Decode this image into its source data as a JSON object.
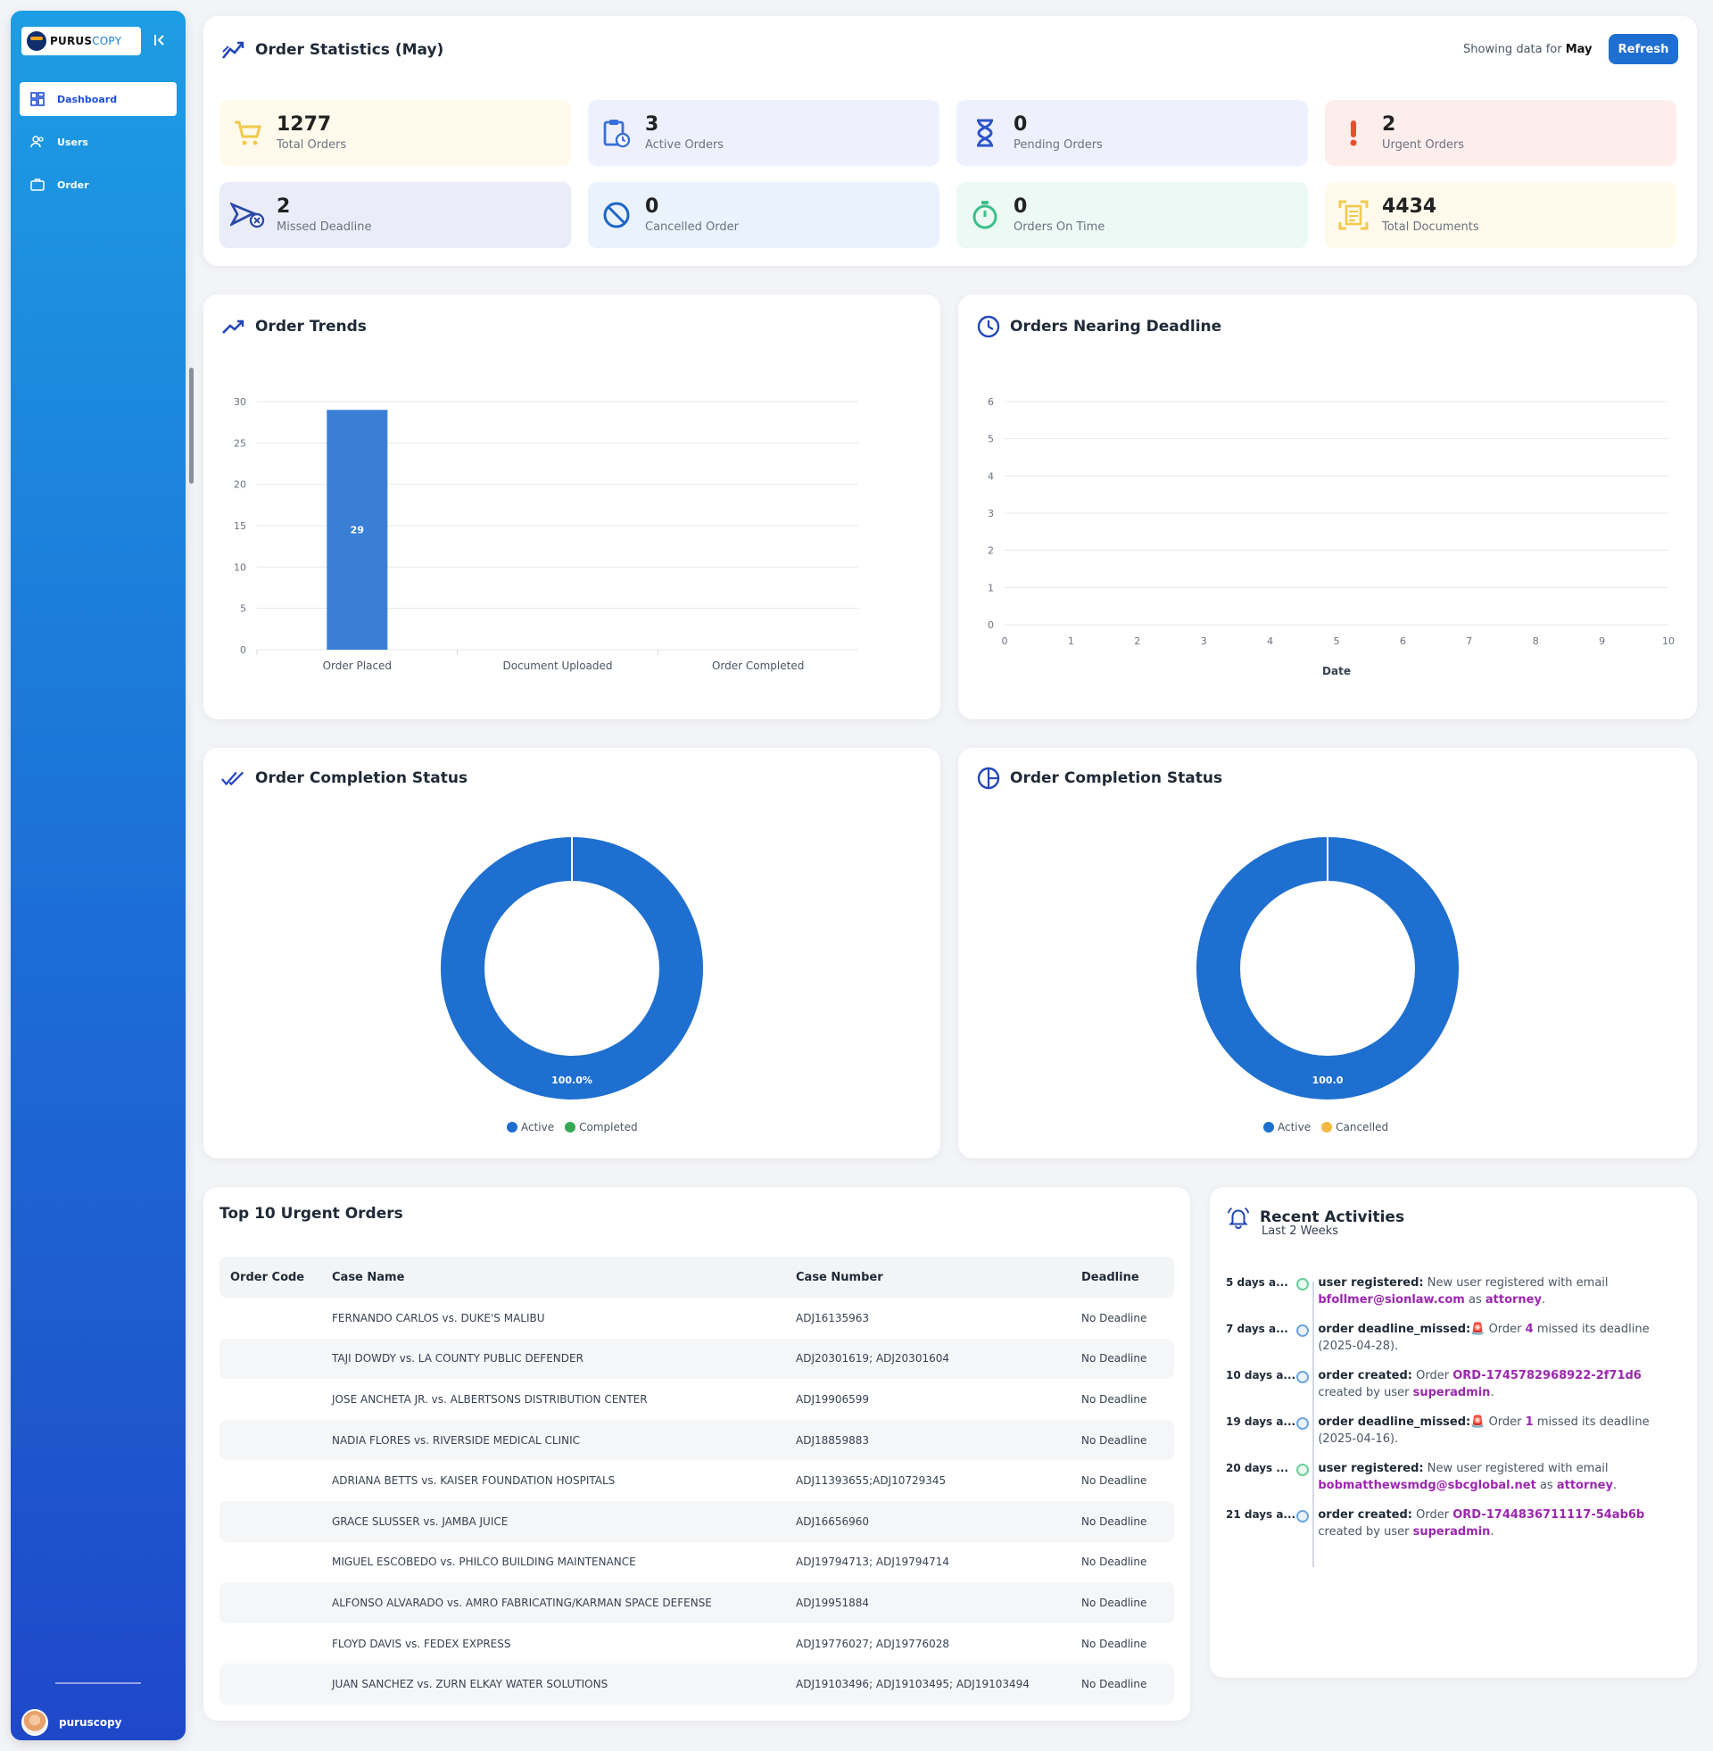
{
  "brand": {
    "name_a": "PURUS",
    "name_b": "COPY"
  },
  "sidebar": {
    "items": [
      {
        "label": "Dashboard",
        "icon": "dashboard-grid-icon",
        "active": true
      },
      {
        "label": "Users",
        "icon": "users-icon",
        "active": false
      },
      {
        "label": "Order",
        "icon": "briefcase-icon",
        "active": false
      }
    ],
    "user": "puruscopy"
  },
  "stats": {
    "title": "Order Statistics (May)",
    "showing_prefix": "Showing data for",
    "showing_month": "May",
    "refresh_label": "Refresh",
    "tiles": [
      {
        "value": "1277",
        "label": "Total Orders",
        "icon": "cart-icon",
        "bg": "#fffaeb",
        "color": "#f2c94c"
      },
      {
        "value": "3",
        "label": "Active Orders",
        "icon": "clipboard-clock-icon",
        "bg": "#eef1fd",
        "color": "#3b6fd8"
      },
      {
        "value": "0",
        "label": "Pending Orders",
        "icon": "hourglass-icon",
        "bg": "#eef1fd",
        "color": "#2c55c7"
      },
      {
        "value": "2",
        "label": "Urgent Orders",
        "icon": "exclamation-icon",
        "bg": "#fdeeec",
        "color": "#e4502f"
      },
      {
        "value": "2",
        "label": "Missed Deadline",
        "icon": "missed-send-icon",
        "bg": "#eaedf8",
        "color": "#2c4aa8"
      },
      {
        "value": "0",
        "label": "Cancelled Order",
        "icon": "cancel-icon",
        "bg": "#eaf3fb",
        "color": "#1f66c7"
      },
      {
        "value": "0",
        "label": "Orders On Time",
        "icon": "stopwatch-icon",
        "bg": "#ecf9f4",
        "color": "#3cbf8c"
      },
      {
        "value": "4434",
        "label": "Total Documents",
        "icon": "document-scan-icon",
        "bg": "#fffaeb",
        "color": "#f2c94c"
      }
    ]
  },
  "trends": {
    "title": "Order Trends",
    "chart_data": {
      "type": "bar",
      "categories": [
        "Order Placed",
        "Document Uploaded",
        "Order Completed"
      ],
      "values": [
        29,
        0,
        0
      ],
      "ylim": [
        0,
        30
      ],
      "yticks": [
        0,
        5,
        10,
        15,
        20,
        25,
        30
      ],
      "bar_color": "#3a7fd5",
      "grid": true
    }
  },
  "deadline": {
    "title": "Orders Nearing Deadline",
    "chart_data": {
      "type": "line",
      "x": [],
      "values": [],
      "xlim": [
        0,
        10
      ],
      "ylim": [
        0,
        6
      ],
      "xticks": [
        0,
        1,
        2,
        3,
        4,
        5,
        6,
        7,
        8,
        9,
        10
      ],
      "yticks": [
        0,
        1,
        2,
        3,
        4,
        5,
        6
      ],
      "xlabel": "Date",
      "grid": true
    }
  },
  "completion_left": {
    "title": "Order Completion Status",
    "chart_data": {
      "type": "pie",
      "labels": [
        "Active",
        "Completed"
      ],
      "values": [
        100.0,
        0.0
      ],
      "colors": [
        "#1e6fcf",
        "#34a853"
      ],
      "slice_label": "100.0%"
    }
  },
  "completion_right": {
    "title": "Order Completion Status",
    "chart_data": {
      "type": "pie",
      "labels": [
        "Active",
        "Cancelled"
      ],
      "values": [
        100.0,
        0.0
      ],
      "colors": [
        "#1e6fcf",
        "#f5b942"
      ],
      "slice_label": "100.0"
    }
  },
  "urgent": {
    "title": "Top 10 Urgent Orders",
    "columns": [
      "Order Code",
      "Case Name",
      "Case Number",
      "Deadline"
    ],
    "rows": [
      [
        "",
        "FERNANDO CARLOS vs. DUKE'S MALIBU",
        "ADJ16135963",
        "No Deadline"
      ],
      [
        "",
        "TAJI DOWDY vs. LA COUNTY PUBLIC DEFENDER",
        "ADJ20301619; ADJ20301604",
        "No Deadline"
      ],
      [
        "",
        "JOSE ANCHETA JR. vs. ALBERTSONS DISTRIBUTION CENTER",
        "ADJ19906599",
        "No Deadline"
      ],
      [
        "",
        "NADIA FLORES vs. RIVERSIDE MEDICAL CLINIC",
        "ADJ18859883",
        "No Deadline"
      ],
      [
        "",
        "ADRIANA BETTS vs. KAISER FOUNDATION HOSPITALS",
        "ADJ11393655;ADJ10729345",
        "No Deadline"
      ],
      [
        "",
        "GRACE SLUSSER vs. JAMBA JUICE",
        "ADJ16656960",
        "No Deadline"
      ],
      [
        "",
        "MIGUEL ESCOBEDO vs. PHILCO BUILDING MAINTENANCE",
        "ADJ19794713; ADJ19794714",
        "No Deadline"
      ],
      [
        "",
        "ALFONSO ALVARADO vs. AMRO FABRICATING/KARMAN SPACE DEFENSE",
        "ADJ19951884",
        "No Deadline"
      ],
      [
        "",
        "FLOYD DAVIS vs. FEDEX EXPRESS",
        "ADJ19776027; ADJ19776028",
        "No Deadline"
      ],
      [
        "",
        "JUAN SANCHEZ vs. ZURN ELKAY WATER SOLUTIONS",
        "ADJ19103496; ADJ19103495; ADJ19103494",
        "No Deadline"
      ]
    ]
  },
  "activities": {
    "title": "Recent Activities",
    "subtitle": "Last 2 Weeks",
    "items": [
      {
        "time": "5 days a...",
        "dot": "green",
        "key": "user registered:",
        "t1": " New user registered with email ",
        "p1": "bfollmer@sionlaw.com",
        "t2": " as ",
        "p2": "attorney",
        "t3": "."
      },
      {
        "time": "7 days a...",
        "dot": "blue",
        "key": "order deadline_missed:",
        "warn": "🚨",
        "t1": " Order ",
        "p1": "4",
        "t2": " missed its deadline (2025-04-28).",
        "p2": "",
        "t3": ""
      },
      {
        "time": "10 days a...",
        "dot": "blue",
        "key": "order created:",
        "t1": " Order ",
        "p1": "ORD-1745782968922-2f71d6",
        "t2": " created by user ",
        "p2": "superadmin",
        "t3": "."
      },
      {
        "time": "19 days a...",
        "dot": "blue",
        "key": "order deadline_missed:",
        "warn": "🚨",
        "t1": " Order ",
        "p1": "1",
        "t2": " missed its deadline (2025-04-16).",
        "p2": "",
        "t3": ""
      },
      {
        "time": "20 days ...",
        "dot": "green",
        "key": "user registered:",
        "t1": " New user registered with email ",
        "p1": "bobmatthewsmdg@sbcglobal.net",
        "t2": " as ",
        "p2": "attorney",
        "t3": "."
      },
      {
        "time": "21 days a...",
        "dot": "blue",
        "key": "order created:",
        "t1": " Order ",
        "p1": "ORD-1744836711117-54ab6b",
        "t2": " created by user ",
        "p2": "superadmin",
        "t3": "."
      }
    ]
  }
}
